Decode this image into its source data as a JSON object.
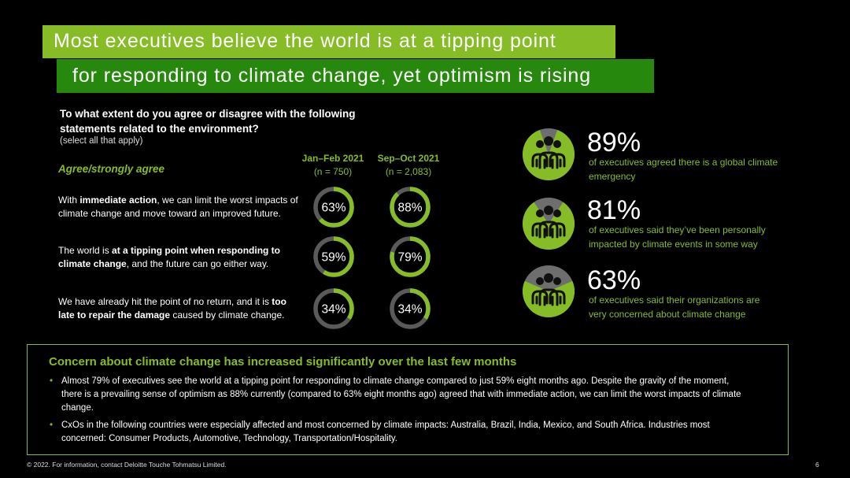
{
  "title": {
    "line1": "Most executives believe the world is at a tipping point",
    "line2": "for responding to climate change, yet optimism is rising"
  },
  "question": {
    "text": "To what extent do you agree or disagree with the following statements related to the environment?",
    "note": "(select all that apply)"
  },
  "agree_label": "Agree/strongly agree",
  "chart_data": {
    "type": "donut",
    "categories": [
      "With immediate action, we can limit the worst impacts of climate change and move toward an improved future.",
      "The world is at a tipping point when responding to climate change, and the future can go either way.",
      "We have already hit the point of no return, and it is too late to repair the damage caused by climate change."
    ],
    "series": [
      {
        "name": "Jan–Feb 2021",
        "n": "(n = 750)",
        "values": [
          63,
          59,
          34
        ],
        "labels": [
          "63%",
          "59%",
          "34%"
        ]
      },
      {
        "name": "Sep–Oct 2021",
        "n": "(n = 2,083)",
        "values": [
          88,
          79,
          34
        ],
        "labels": [
          "88%",
          "79%",
          "34%"
        ]
      }
    ],
    "colors": {
      "fill": "#86bc25",
      "track": "#5a5a5a"
    },
    "ylim": [
      0,
      100
    ]
  },
  "statements": [
    {
      "pre": "With ",
      "bold": "immediate action",
      "post": ", we can limit the worst impacts of climate change and move toward an improved future."
    },
    {
      "pre": "The world is ",
      "bold": "at a tipping point when responding to climate change",
      "post": ", and the future can go either way."
    },
    {
      "pre": "We have already hit the point of no return, and it is ",
      "bold": "too late to repair the damage",
      "post": " caused by climate change."
    }
  ],
  "stats": [
    {
      "value": 89,
      "pct": "89%",
      "desc": "of executives agreed there is a global climate emergency",
      "icon": "people-group-icon"
    },
    {
      "value": 81,
      "pct": "81%",
      "desc": "of executives said they’ve been personally impacted by climate events in some way",
      "icon": "people-group-icon"
    },
    {
      "value": 63,
      "pct": "63%",
      "desc": "of executives said their organizations are very concerned about climate change",
      "icon": "people-group-icon"
    }
  ],
  "concern": {
    "title": "Concern about climate change has increased significantly over the last few months",
    "bullets": [
      "Almost 79% of executives see the world at a tipping point for responding to climate change compared to just 59% eight months ago. Despite the gravity of the moment, there is a prevailing sense of optimism as 88% currently (compared to 63% eight months ago) agreed that with immediate action, we can limit the worst impacts of climate change.",
      "CxOs in the following countries were especially affected and most concerned by climate impacts: Australia, Brazil, India, Mexico, and South Africa. Industries most concerned: Consumer Products, Automotive, Technology, Transportation/Hospitality."
    ]
  },
  "footer": "© 2022. For information, contact Deloitte Touche Tohmatsu Limited.",
  "page_number": "6",
  "colors": {
    "green": "#86bc25",
    "dark_green": "#26890d",
    "background": "#000000"
  }
}
